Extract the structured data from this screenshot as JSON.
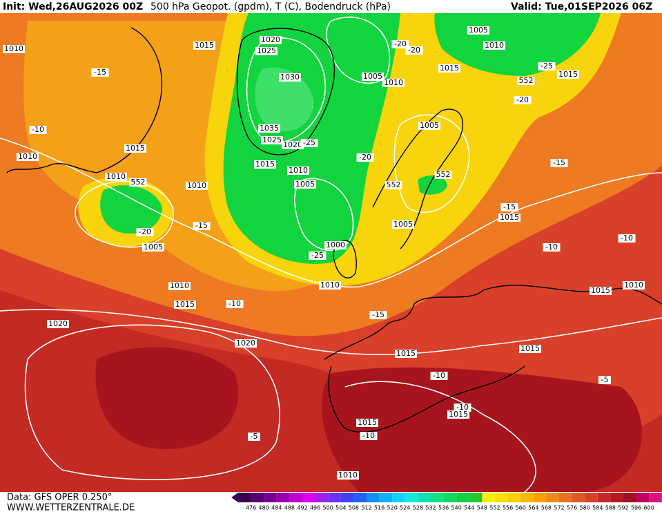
{
  "header": {
    "init": "Init: Wed,26AUG2026 00Z",
    "title": "500 hPa Geopot. (gpdm), T (C), Bodendruck (hPa)",
    "valid": "Valid: Tue,01SEP2026 06Z"
  },
  "footer": {
    "data": "Data: GFS OPER 0.250°",
    "site": "WWW.WETTERZENTRALE.DE"
  },
  "scale": [
    476,
    480,
    484,
    488,
    492,
    496,
    500,
    504,
    508,
    512,
    516,
    520,
    524,
    528,
    532,
    536,
    540,
    544,
    548,
    552,
    556,
    560,
    564,
    568,
    572,
    576,
    580,
    584,
    588,
    592,
    596,
    600
  ],
  "map_labels": [
    "1010",
    "1015",
    "1020",
    "1025",
    "1030",
    "1035",
    "1025",
    "1020",
    "-25",
    "1005",
    "1010",
    "1005",
    "1010",
    "1015",
    "552",
    "-25",
    "1015",
    "-20",
    "-20",
    "-20",
    "-15",
    "-10",
    "1015",
    "1010",
    "1010",
    "552",
    "1010",
    "1015",
    "1010",
    "1005",
    "-20",
    "552",
    "1005",
    "552",
    "-15",
    "-15",
    "1015",
    "1005",
    "-20",
    "1005",
    "-15",
    "1000",
    "-25",
    "-10",
    "-10",
    "1010",
    "1010",
    "1015",
    "-10",
    "1010",
    "1015",
    "-15",
    "1020",
    "1020",
    "1015",
    "1015",
    "-10",
    "-5",
    "-10",
    "1015",
    "1015",
    "-10",
    "-5",
    "1010"
  ]
}
